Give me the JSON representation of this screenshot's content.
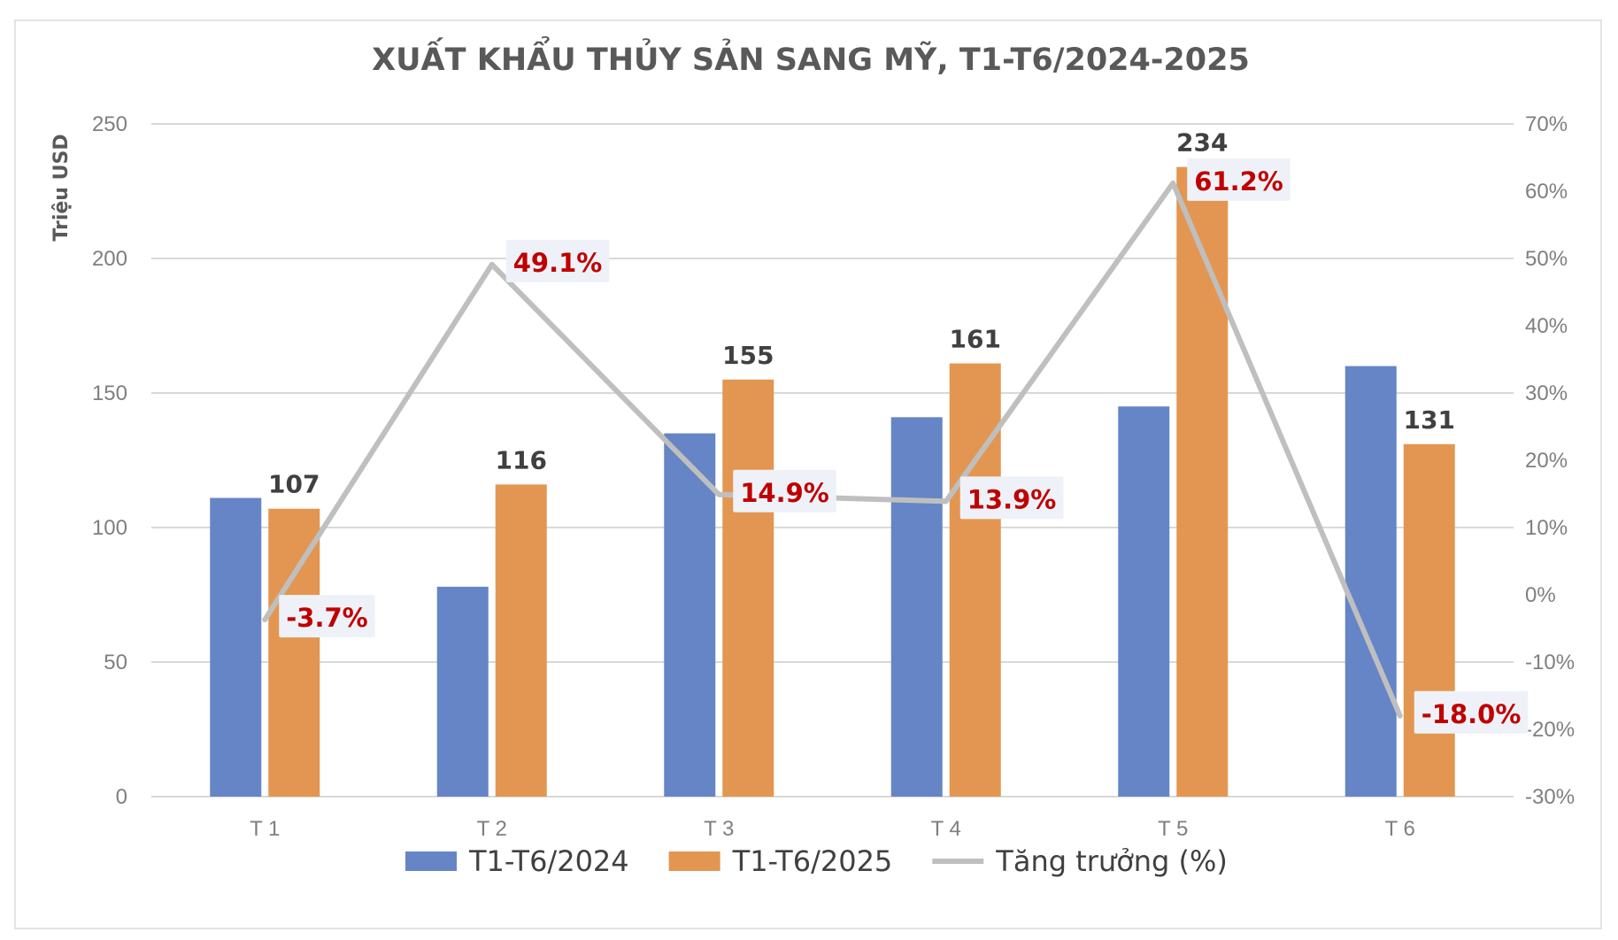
{
  "chart_data": {
    "type": "bar",
    "title": "XUẤT KHẨU THỦY SẢN SANG MỸ, T1-T6/2024-2025",
    "ylabel": "Triệu USD",
    "ylim": [
      0,
      250
    ],
    "y_ticks": [
      "0",
      "50",
      "100",
      "150",
      "200",
      "250"
    ],
    "y2lim": [
      -30,
      70
    ],
    "y2_ticks": [
      "-30%",
      "-20%",
      "-10%",
      "0%",
      "10%",
      "20%",
      "30%",
      "40%",
      "50%",
      "60%",
      "70%"
    ],
    "categories": [
      "T 1",
      "T 2",
      "T 3",
      "T 4",
      "T 5",
      "T 6"
    ],
    "grid": true,
    "legend_position": "bottom",
    "series": [
      {
        "name": "T1-T6/2024",
        "type": "bar",
        "axis": "left",
        "color": "#6585c6",
        "values": [
          111,
          78,
          135,
          141,
          145,
          160
        ],
        "labels": [
          "",
          "",
          "",
          "",
          "",
          ""
        ]
      },
      {
        "name": "T1-T6/2025",
        "type": "bar",
        "axis": "left",
        "color": "#e39651",
        "values": [
          107,
          116,
          155,
          161,
          234,
          131
        ],
        "labels": [
          "107",
          "116",
          "155",
          "161",
          "234",
          "131"
        ]
      },
      {
        "name": "Tăng trưởng (%)",
        "type": "line",
        "axis": "right",
        "color": "#bfbfbf",
        "values": [
          -3.7,
          49.1,
          14.9,
          13.9,
          61.2,
          -18.0
        ],
        "labels": [
          "-3.7%",
          "49.1%",
          "14.9%",
          "13.9%",
          "61.2%",
          "-18.0%"
        ]
      }
    ]
  }
}
